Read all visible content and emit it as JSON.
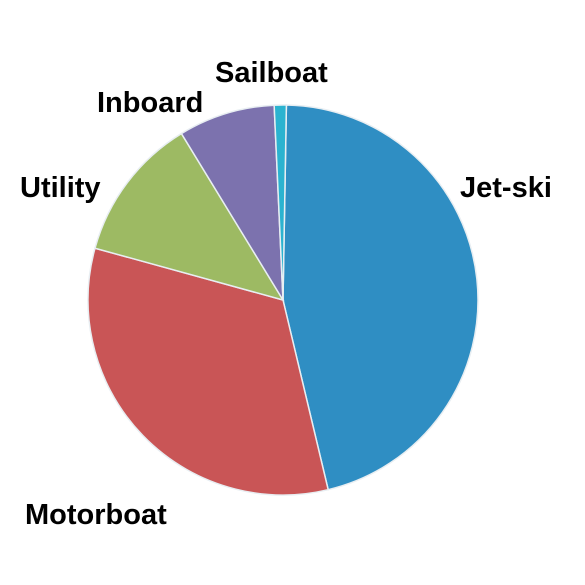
{
  "chart_data": {
    "type": "pie",
    "categories": [
      "Jet-ski",
      "Motorboat",
      "Utility",
      "Inboard",
      "Sailboat"
    ],
    "values": [
      46,
      33,
      12,
      8,
      1
    ],
    "colors": [
      "#2f8ec3",
      "#c95556",
      "#9dba63",
      "#7c72ae",
      "#2bb3d0"
    ],
    "legend": "labels-around-slices"
  }
}
